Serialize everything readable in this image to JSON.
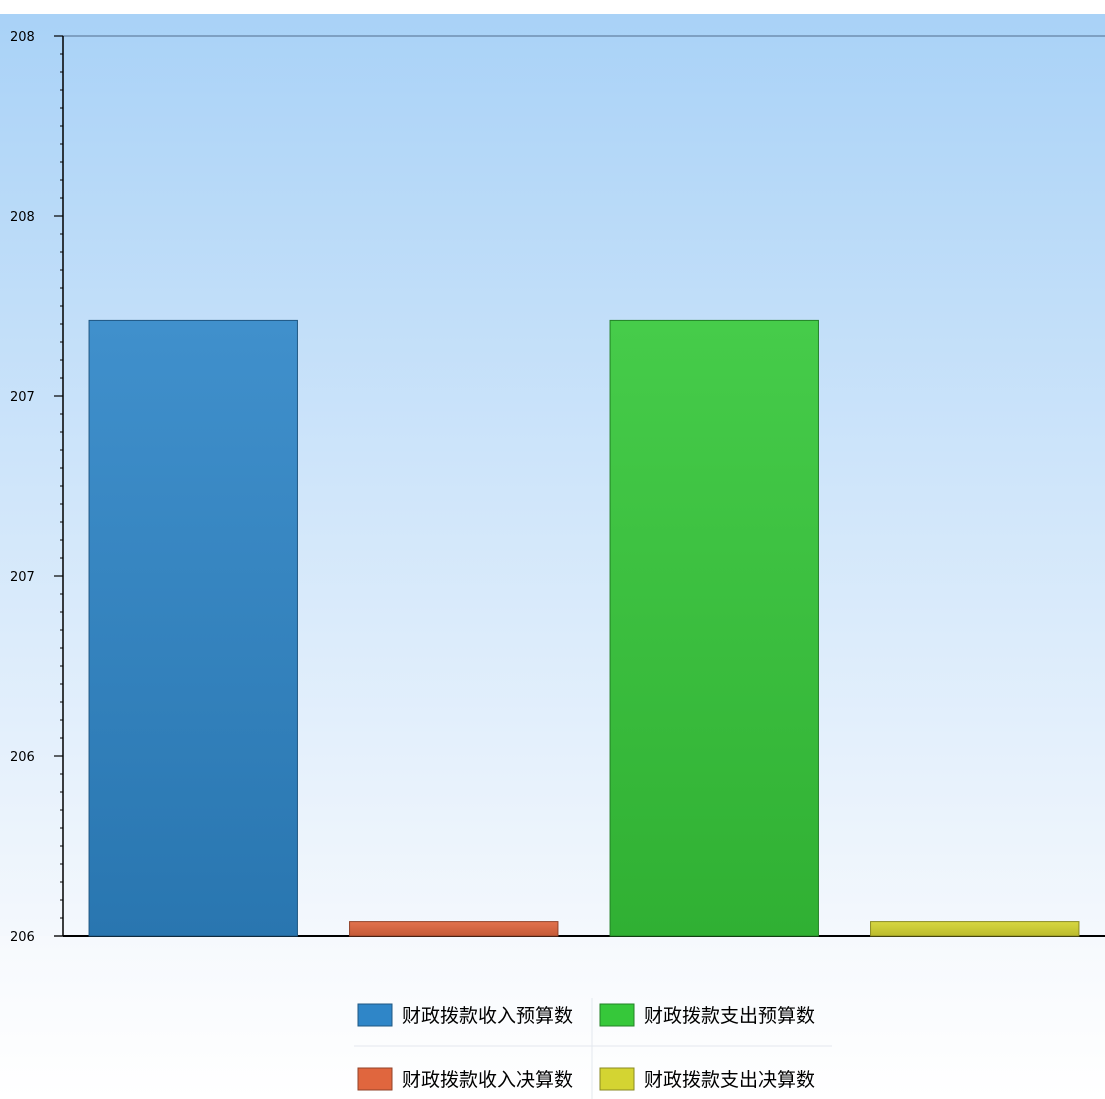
{
  "chart_data": {
    "type": "bar",
    "title": "",
    "xlabel": "",
    "ylabel": "",
    "categories": [
      "财政拨款收入预算数",
      "财政拨款收入决算数",
      "财政拨款支出预算数",
      "财政拨款支出决算数"
    ],
    "values": [
      207.71,
      206.04,
      207.71,
      206.04
    ],
    "colors": [
      "#2f86c8",
      "#e0663e",
      "#36c83a",
      "#d4d432"
    ],
    "ylim": [
      206.0,
      208.5
    ],
    "yticks": [
      {
        "value": 206.0,
        "label": "206"
      },
      {
        "value": 206.5,
        "label": "206"
      },
      {
        "value": 207.0,
        "label": "207"
      },
      {
        "value": 207.5,
        "label": "207"
      },
      {
        "value": 208.0,
        "label": "208"
      },
      {
        "value": 208.5,
        "label": "208"
      }
    ],
    "grid": false,
    "legend": {
      "position": "bottom",
      "entries": [
        {
          "label": "财政拨款收入预算数",
          "color": "#2f86c8"
        },
        {
          "label": "财政拨款支出预算数",
          "color": "#36c83a"
        },
        {
          "label": "财政拨款收入决算数",
          "color": "#e0663e"
        },
        {
          "label": "财政拨款支出决算数",
          "color": "#d4d432"
        }
      ]
    }
  }
}
